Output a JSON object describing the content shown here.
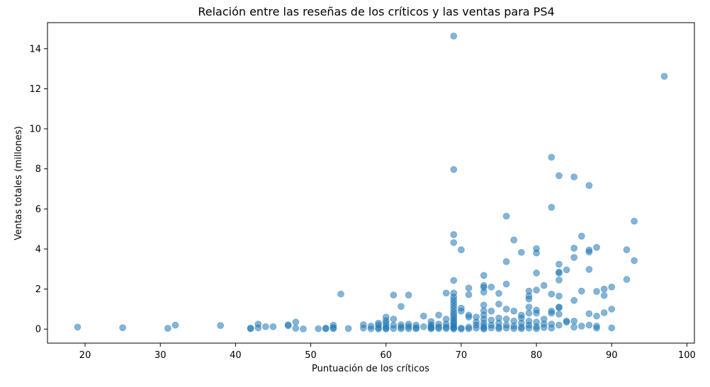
{
  "chart_data": {
    "type": "scatter",
    "title": "Relación entre las reseñas de los críticos y las ventas para PS4",
    "xlabel": "Puntuación de los críticos",
    "ylabel": "Ventas totales (millones)",
    "xlim": [
      15,
      101
    ],
    "ylim": [
      -0.7,
      15.3
    ],
    "x_ticks": [
      20,
      30,
      40,
      50,
      60,
      70,
      80,
      90,
      100
    ],
    "y_ticks": [
      0,
      2,
      4,
      6,
      8,
      10,
      12,
      14
    ],
    "grid": false,
    "marker_color": "#1f77b4",
    "marker_alpha": 0.55,
    "series": [
      {
        "points": [
          [
            19,
            0.1
          ],
          [
            25,
            0.07
          ],
          [
            31,
            0.04
          ],
          [
            32,
            0.2
          ],
          [
            38,
            0.18
          ],
          [
            42,
            0.05
          ],
          [
            42,
            0.02
          ],
          [
            43,
            0.25
          ],
          [
            43,
            0.06
          ],
          [
            44,
            0.12
          ],
          [
            45,
            0.12
          ],
          [
            47,
            0.22
          ],
          [
            47,
            0.17
          ],
          [
            48,
            0.35
          ],
          [
            48,
            0.04
          ],
          [
            49,
            0.01
          ],
          [
            51,
            0.02
          ],
          [
            52,
            0.05
          ],
          [
            52,
            0.02
          ],
          [
            53,
            0.2
          ],
          [
            53,
            0.08
          ],
          [
            53,
            0.02
          ],
          [
            54,
            1.75
          ],
          [
            55,
            0.03
          ],
          [
            57,
            0.22
          ],
          [
            57,
            0.05
          ],
          [
            58,
            0.15
          ],
          [
            58,
            0.02
          ],
          [
            59,
            0.3
          ],
          [
            59,
            0.2
          ],
          [
            59,
            0.06
          ],
          [
            59,
            0.01
          ],
          [
            60,
            0.6
          ],
          [
            60,
            0.42
          ],
          [
            60,
            0.3
          ],
          [
            60,
            0.15
          ],
          [
            60,
            0.05
          ],
          [
            60,
            0.01
          ],
          [
            61,
            1.7
          ],
          [
            61,
            0.5
          ],
          [
            61,
            0.2
          ],
          [
            61,
            0.03
          ],
          [
            62,
            1.13
          ],
          [
            62,
            0.22
          ],
          [
            62,
            0.1
          ],
          [
            62,
            0.02
          ],
          [
            63,
            1.7
          ],
          [
            63,
            0.25
          ],
          [
            63,
            0.12
          ],
          [
            63,
            0.02
          ],
          [
            64,
            0.2
          ],
          [
            64,
            0.07
          ],
          [
            64,
            0.02
          ],
          [
            65,
            0.65
          ],
          [
            65,
            0.12
          ],
          [
            66,
            0.38
          ],
          [
            66,
            0.22
          ],
          [
            66,
            0.12
          ],
          [
            66,
            0.05
          ],
          [
            66,
            0.02
          ],
          [
            67,
            0.7
          ],
          [
            67,
            0.25
          ],
          [
            67,
            0.1
          ],
          [
            67,
            0.03
          ],
          [
            68,
            1.8
          ],
          [
            68,
            0.5
          ],
          [
            68,
            0.25
          ],
          [
            68,
            0.1
          ],
          [
            68,
            0.03
          ],
          [
            69,
            14.63
          ],
          [
            69,
            7.97
          ],
          [
            69,
            4.72
          ],
          [
            69,
            4.32
          ],
          [
            69,
            2.43
          ],
          [
            69,
            1.8
          ],
          [
            69,
            1.6
          ],
          [
            69,
            1.45
          ],
          [
            69,
            1.3
          ],
          [
            69,
            1.15
          ],
          [
            69,
            1.0
          ],
          [
            69,
            0.85
          ],
          [
            69,
            0.72
          ],
          [
            69,
            0.6
          ],
          [
            69,
            0.48
          ],
          [
            69,
            0.38
          ],
          [
            69,
            0.28
          ],
          [
            69,
            0.18
          ],
          [
            69,
            0.1
          ],
          [
            69,
            0.05
          ],
          [
            69,
            0.01
          ],
          [
            70,
            3.96
          ],
          [
            70,
            1.05
          ],
          [
            70,
            0.9
          ],
          [
            70,
            0.05
          ],
          [
            70,
            0.01
          ],
          [
            71,
            2.05
          ],
          [
            71,
            1.72
          ],
          [
            71,
            0.7
          ],
          [
            71,
            0.6
          ],
          [
            71,
            0.1
          ],
          [
            71,
            0.02
          ],
          [
            72,
            0.6
          ],
          [
            72,
            0.35
          ],
          [
            72,
            0.2
          ],
          [
            72,
            0.05
          ],
          [
            73,
            2.68
          ],
          [
            73,
            2.18
          ],
          [
            73,
            2.08
          ],
          [
            73,
            1.85
          ],
          [
            73,
            1.2
          ],
          [
            73,
            0.92
          ],
          [
            73,
            0.7
          ],
          [
            73,
            0.5
          ],
          [
            73,
            0.3
          ],
          [
            73,
            0.15
          ],
          [
            73,
            0.05
          ],
          [
            73,
            0.01
          ],
          [
            74,
            2.1
          ],
          [
            74,
            0.9
          ],
          [
            74,
            0.45
          ],
          [
            74,
            0.2
          ],
          [
            74,
            0.06
          ],
          [
            75,
            1.78
          ],
          [
            75,
            1.25
          ],
          [
            75,
            0.55
          ],
          [
            75,
            0.3
          ],
          [
            75,
            0.1
          ],
          [
            75,
            0.02
          ],
          [
            76,
            5.64
          ],
          [
            76,
            3.37
          ],
          [
            76,
            2.25
          ],
          [
            76,
            1.0
          ],
          [
            76,
            0.5
          ],
          [
            76,
            0.2
          ],
          [
            76,
            0.05
          ],
          [
            77,
            4.45
          ],
          [
            77,
            0.9
          ],
          [
            77,
            0.4
          ],
          [
            77,
            0.15
          ],
          [
            77,
            0.03
          ],
          [
            78,
            3.83
          ],
          [
            78,
            0.7
          ],
          [
            78,
            0.55
          ],
          [
            78,
            0.3
          ],
          [
            78,
            0.1
          ],
          [
            78,
            0.02
          ],
          [
            79,
            1.9
          ],
          [
            79,
            1.65
          ],
          [
            79,
            1.5
          ],
          [
            79,
            1.1
          ],
          [
            79,
            0.8
          ],
          [
            79,
            0.4
          ],
          [
            79,
            0.2
          ],
          [
            79,
            0.05
          ],
          [
            80,
            4.02
          ],
          [
            80,
            3.8
          ],
          [
            80,
            2.8
          ],
          [
            80,
            1.95
          ],
          [
            80,
            0.95
          ],
          [
            80,
            0.8
          ],
          [
            80,
            0.35
          ],
          [
            80,
            0.12
          ],
          [
            80,
            0.02
          ],
          [
            81,
            2.18
          ],
          [
            81,
            0.5
          ],
          [
            81,
            0.25
          ],
          [
            81,
            0.08
          ],
          [
            82,
            8.58
          ],
          [
            82,
            6.08
          ],
          [
            82,
            1.75
          ],
          [
            82,
            0.9
          ],
          [
            82,
            0.8
          ],
          [
            82,
            0.25
          ],
          [
            82,
            0.05
          ],
          [
            83,
            7.66
          ],
          [
            83,
            3.24
          ],
          [
            83,
            2.85
          ],
          [
            83,
            2.8
          ],
          [
            83,
            2.45
          ],
          [
            83,
            1.65
          ],
          [
            83,
            1.1
          ],
          [
            83,
            1.07
          ],
          [
            83,
            0.75
          ],
          [
            83,
            0.2
          ],
          [
            84,
            2.96
          ],
          [
            84,
            0.4
          ],
          [
            84,
            0.35
          ],
          [
            85,
            7.6
          ],
          [
            85,
            4.04
          ],
          [
            85,
            3.58
          ],
          [
            85,
            1.43
          ],
          [
            85,
            0.4
          ],
          [
            85,
            0.1
          ],
          [
            86,
            4.64
          ],
          [
            86,
            1.9
          ],
          [
            86,
            0.15
          ],
          [
            87,
            7.17
          ],
          [
            87,
            3.95
          ],
          [
            87,
            3.85
          ],
          [
            87,
            2.98
          ],
          [
            87,
            0.77
          ],
          [
            87,
            0.2
          ],
          [
            88,
            4.08
          ],
          [
            88,
            1.88
          ],
          [
            88,
            0.65
          ],
          [
            88,
            0.15
          ],
          [
            88,
            0.05
          ],
          [
            89,
            2.0
          ],
          [
            89,
            1.68
          ],
          [
            89,
            0.82
          ],
          [
            90,
            2.1
          ],
          [
            90,
            1.0
          ],
          [
            90,
            0.06
          ],
          [
            92,
            3.96
          ],
          [
            92,
            2.48
          ],
          [
            93,
            5.39
          ],
          [
            93,
            3.42
          ],
          [
            97,
            12.62
          ]
        ]
      }
    ]
  }
}
